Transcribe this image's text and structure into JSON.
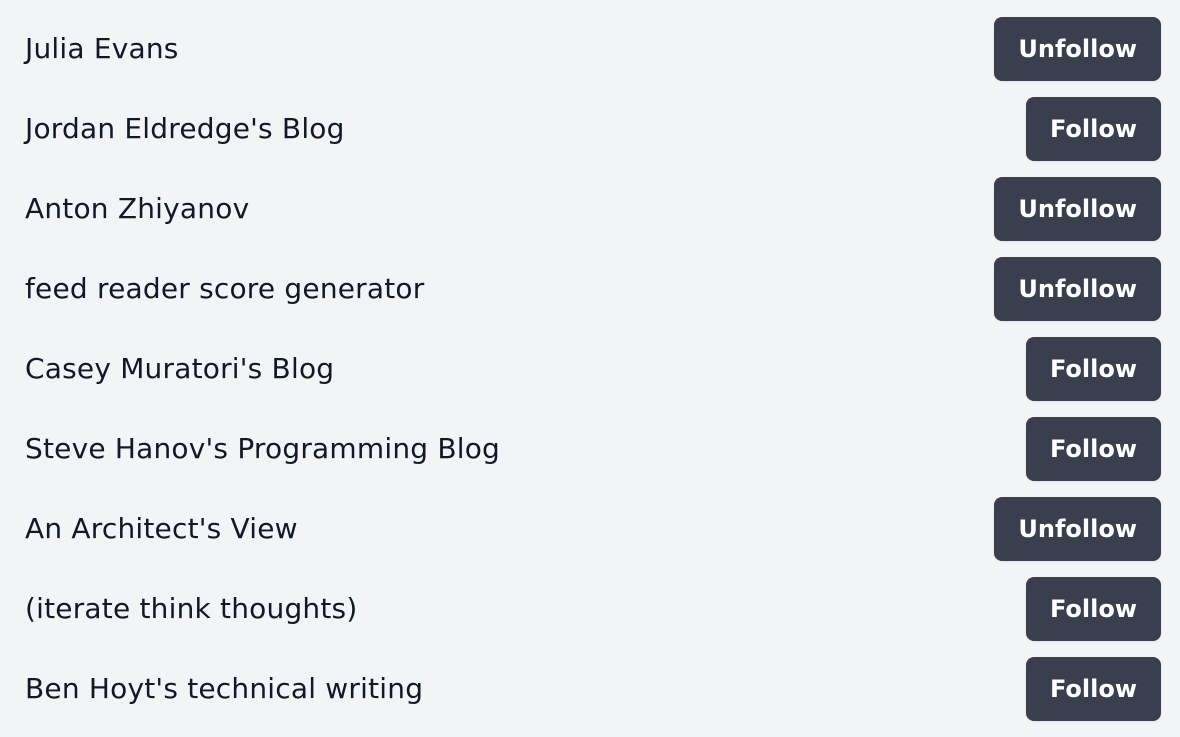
{
  "feeds": [
    {
      "title": "Julia Evans",
      "button_label": "Unfollow"
    },
    {
      "title": "Jordan Eldredge's Blog",
      "button_label": "Follow"
    },
    {
      "title": "Anton Zhiyanov",
      "button_label": "Unfollow"
    },
    {
      "title": "feed reader score generator",
      "button_label": "Unfollow"
    },
    {
      "title": "Casey Muratori's Blog",
      "button_label": "Follow"
    },
    {
      "title": "Steve Hanov's Programming Blog",
      "button_label": "Follow"
    },
    {
      "title": "An Architect's View",
      "button_label": "Unfollow"
    },
    {
      "title": "(iterate think thoughts)",
      "button_label": "Follow"
    },
    {
      "title": "Ben Hoyt's technical writing",
      "button_label": "Follow"
    }
  ],
  "colors": {
    "background": "#f3f4f6",
    "button": "#3a3f4f",
    "button_text": "#ffffff",
    "text": "#111827"
  }
}
